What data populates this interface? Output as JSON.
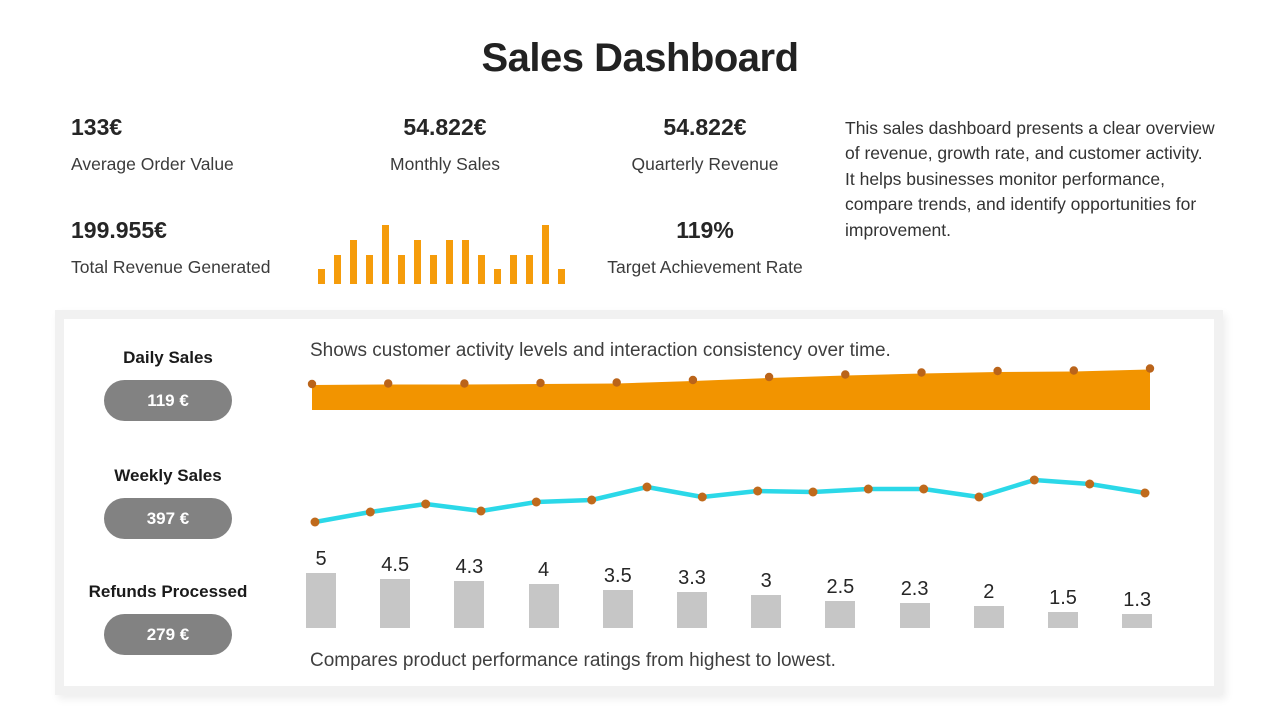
{
  "header": {
    "title": "Sales Dashboard"
  },
  "kpis": [
    {
      "value": "133€",
      "label": "Average Order Value"
    },
    {
      "value": "54.822€",
      "label": "Monthly Sales"
    },
    {
      "value": "54.822€",
      "label": "Quarterly Revenue"
    },
    {
      "value": "199.955€",
      "label": "Total Revenue Generated"
    },
    {
      "value": "119%",
      "label": "Target Achievement Rate"
    }
  ],
  "description": "This sales dashboard presents a clear overview of revenue, growth rate, and customer activity. It helps businesses monitor performance, compare trends, and identify opportunities for improvement.",
  "stats": [
    {
      "label": "Daily Sales",
      "value": "119 €"
    },
    {
      "label": "Weekly Sales",
      "value": "397 €"
    },
    {
      "label": "Refunds Processed",
      "value": "279 €"
    }
  ],
  "colors": {
    "accent_orange": "#F59C0B",
    "area_orange": "#F29400",
    "dot_brown": "#BA641A",
    "line_cyan": "#2BD8E8",
    "bar_gray": "#C6C6C6",
    "pill_gray": "#828282",
    "text_dark": "#262626"
  },
  "chart_data": [
    {
      "type": "bar",
      "name": "monthly-sales-sparkline",
      "title": "",
      "values": [
        1,
        2,
        3,
        2,
        4,
        2,
        3,
        2,
        3,
        3,
        2,
        1,
        2,
        2,
        4,
        1
      ],
      "ylim": [
        0,
        4
      ],
      "color": "#F59C0B",
      "axes": "none",
      "grid": false
    },
    {
      "type": "area",
      "name": "customer-activity-area",
      "title": "Shows customer activity levels and interaction consistency over time.",
      "values": [
        25,
        25.5,
        25.5,
        26,
        26.5,
        29,
        32,
        34.5,
        36.5,
        38,
        38.5,
        40.5
      ],
      "ylim": [
        0,
        45
      ],
      "color": "#F29400",
      "dot_color": "#BA641A",
      "axes": "none",
      "grid": false
    },
    {
      "type": "line",
      "name": "weekly-trend-line",
      "title": "",
      "values": [
        0.6,
        2.6,
        4.2,
        2.8,
        4.6,
        5,
        7.6,
        5.6,
        6.8,
        6.6,
        7.2,
        7.2,
        5.6,
        9,
        8.2,
        6.4
      ],
      "ylim": [
        0,
        11
      ],
      "color": "#2BD8E8",
      "dot_color": "#BF6A1C",
      "axes": "none",
      "grid": false
    },
    {
      "type": "bar",
      "name": "product-ratings",
      "title": "Compares product performance ratings from highest to lowest.",
      "values": [
        5,
        4.5,
        4.3,
        4,
        3.5,
        3.3,
        3,
        2.5,
        2.3,
        2,
        1.5,
        1.3
      ],
      "ylim": [
        0,
        5
      ],
      "color": "#C6C6C6",
      "label_color": "#262626",
      "sort": "descending",
      "axes": "none",
      "grid": false
    }
  ]
}
